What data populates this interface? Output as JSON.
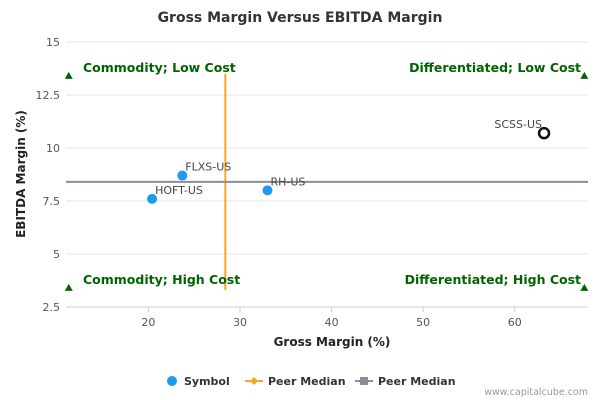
{
  "chart_data": {
    "type": "scatter",
    "title": "Gross Margin Versus EBITDA Margin",
    "xlabel": "Gross Margin (%)",
    "ylabel": "EBITDA Margin (%)",
    "xlim": [
      11,
      68
    ],
    "ylim": [
      2.5,
      15
    ],
    "xticks": [
      20,
      30,
      40,
      50,
      60
    ],
    "yticks": [
      2.5,
      5,
      7.5,
      10,
      12.5,
      15
    ],
    "points": [
      {
        "symbol": "FLXS-US",
        "x": 23.7,
        "y": 8.7,
        "style": "filled"
      },
      {
        "symbol": "HOFT-US",
        "x": 20.4,
        "y": 7.6,
        "style": "filled"
      },
      {
        "symbol": "RH-US",
        "x": 33.0,
        "y": 8.0,
        "style": "filled"
      },
      {
        "symbol": "SCSS-US",
        "x": 63.2,
        "y": 10.7,
        "style": "hollow"
      }
    ],
    "peer_median_x": 28.4,
    "peer_median_y": 8.4,
    "quadrants": {
      "top_left": "Commodity; Low Cost",
      "top_right": "Differentiated; Low Cost",
      "bottom_left": "Commodity; High Cost",
      "bottom_right": "Differentiated; High Cost"
    },
    "legend": [
      {
        "label": "Symbol",
        "marker": "circle"
      },
      {
        "label": "Peer Median",
        "marker": "diamond-line"
      },
      {
        "label": "Peer Median",
        "marker": "square-line"
      }
    ],
    "legend_position": "bottom-center"
  },
  "credit": "www.capitalcube.com",
  "colors": {
    "point": "#1e9bef",
    "hollow_stroke": "#111111",
    "median_x_line": "#f5a623",
    "median_y_line": "#8c8c99",
    "quadrant_text": "#006400",
    "grid": "#e6e6e6",
    "axis": "#c0d0e0"
  }
}
